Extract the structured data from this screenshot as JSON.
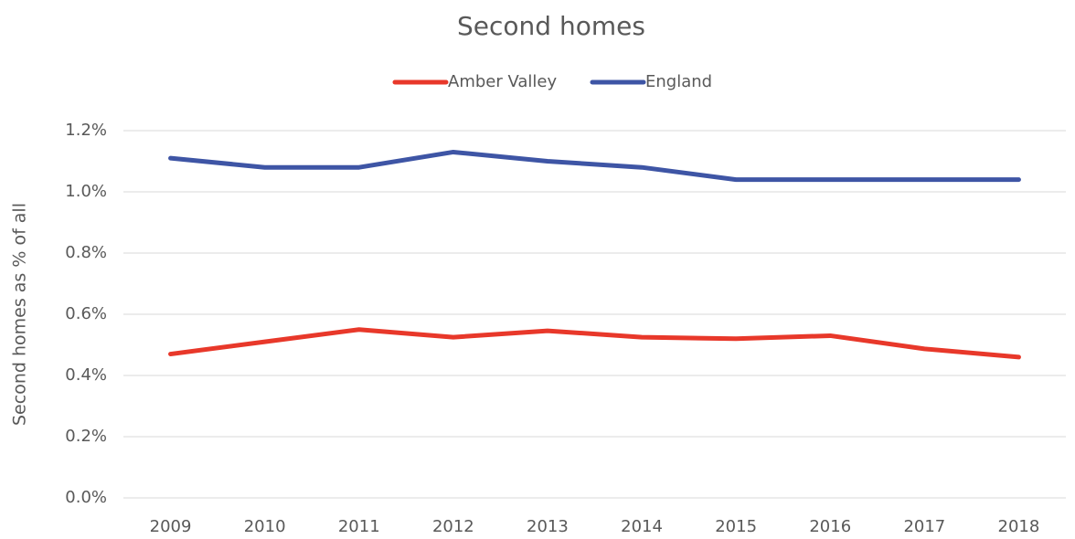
{
  "chart_data": {
    "type": "line",
    "title": "Second homes",
    "y_label": "Second homes as % of all",
    "categories": [
      "2009",
      "2010",
      "2011",
      "2012",
      "2013",
      "2014",
      "2015",
      "2016",
      "2017",
      "2018"
    ],
    "series": [
      {
        "name": "Amber Valley",
        "color": "#e8382a",
        "values": [
          0.47,
          0.51,
          0.55,
          0.525,
          0.546,
          0.525,
          0.52,
          0.53,
          0.487,
          0.46
        ]
      },
      {
        "name": "England",
        "color": "#3e55a5",
        "values": [
          1.11,
          1.08,
          1.08,
          1.13,
          1.1,
          1.08,
          1.04,
          1.04,
          1.04,
          1.04
        ]
      }
    ],
    "ylim": [
      0,
      1.2
    ],
    "yticks": [
      {
        "value": 0,
        "label": "0.0%"
      },
      {
        "value": 0.2,
        "label": "0.2%"
      },
      {
        "value": 0.4,
        "label": "0.4%"
      },
      {
        "value": 0.6,
        "label": "0.6%"
      },
      {
        "value": 0.8,
        "label": "0.8%"
      },
      {
        "value": 1.0,
        "label": "1.0%"
      },
      {
        "value": 1.2,
        "label": "1.2%"
      }
    ],
    "grid": true,
    "legend": "top"
  }
}
